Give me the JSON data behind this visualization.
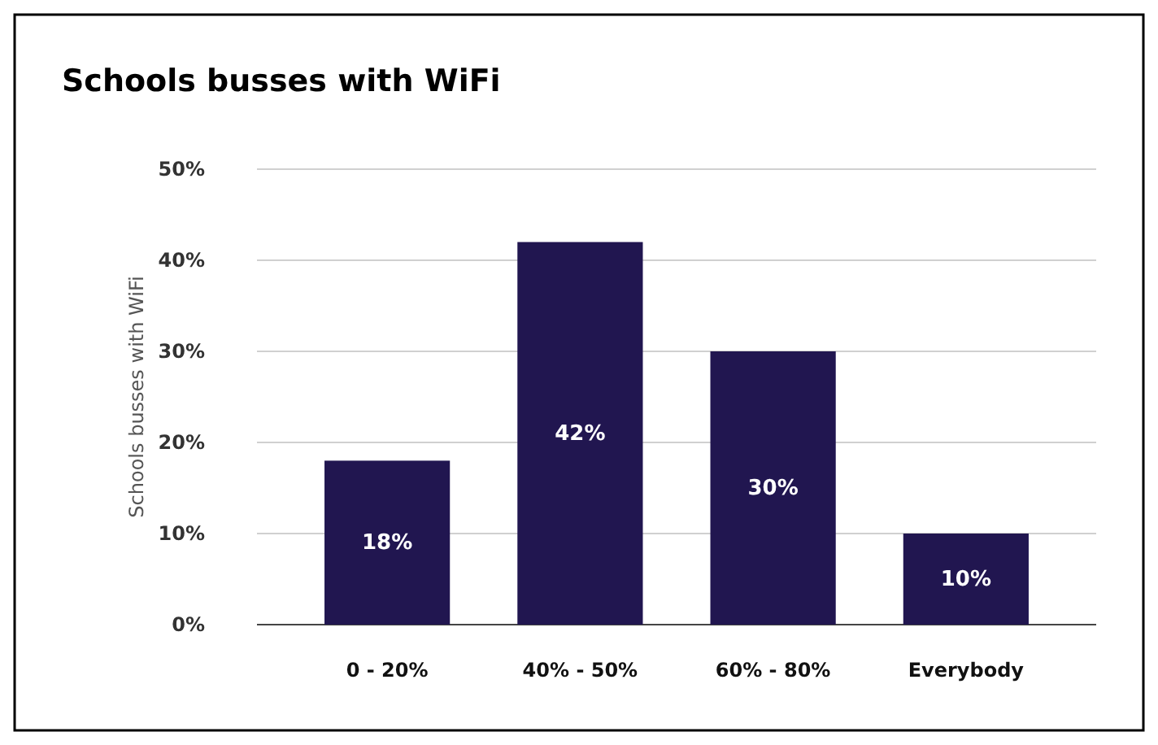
{
  "chart_data": {
    "type": "bar",
    "title": "Schools busses with WiFi",
    "ylabel": "Schools busses with WiFi",
    "categories": [
      "0 - 20%",
      "40% - 50%",
      "60% - 80%",
      "Everybody"
    ],
    "values": [
      18,
      42,
      30,
      10
    ],
    "color": "#211650",
    "value_labels": [
      "18%",
      "42%",
      "30%",
      "10%"
    ],
    "ylim": [
      0,
      50
    ],
    "yticks": [
      {
        "value": 0,
        "label": "0%"
      },
      {
        "value": 10,
        "label": "10%"
      },
      {
        "value": 20,
        "label": "20%"
      },
      {
        "value": 30,
        "label": "30%"
      },
      {
        "value": 40,
        "label": "40%"
      },
      {
        "value": 50,
        "label": "50%"
      }
    ],
    "grid": "y"
  }
}
